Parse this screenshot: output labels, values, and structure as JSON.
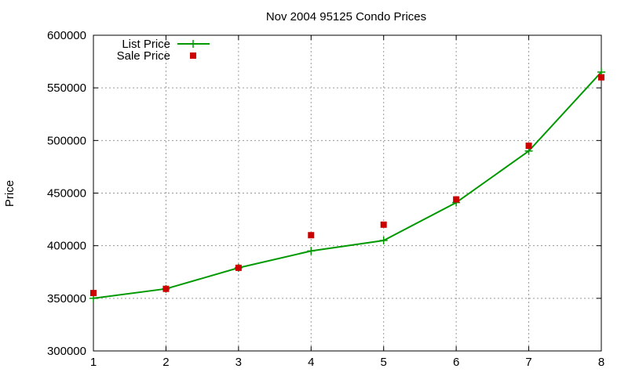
{
  "chart_data": {
    "type": "line",
    "title": "Nov 2004 95125 Condo Prices",
    "xlabel": "",
    "ylabel": "Price",
    "x": [
      1,
      2,
      3,
      4,
      5,
      6,
      7,
      8
    ],
    "xlim": [
      1,
      8
    ],
    "ylim": [
      300000,
      600000
    ],
    "xticks": [
      "1",
      "2",
      "3",
      "4",
      "5",
      "6",
      "7",
      "8"
    ],
    "yticks": [
      "300000",
      "350000",
      "400000",
      "450000",
      "500000",
      "550000",
      "600000"
    ],
    "grid": true,
    "legend_position": "top-left",
    "series": [
      {
        "name": "List Price",
        "style": "line-with-plus-markers",
        "color": "#009900",
        "values": [
          350000,
          359000,
          379000,
          395000,
          405000,
          441000,
          490000,
          565000
        ]
      },
      {
        "name": "Sale Price",
        "style": "square-points",
        "color": "#cc0000",
        "values": [
          355000,
          359000,
          379000,
          410000,
          420000,
          444000,
          495000,
          560000
        ]
      }
    ]
  }
}
